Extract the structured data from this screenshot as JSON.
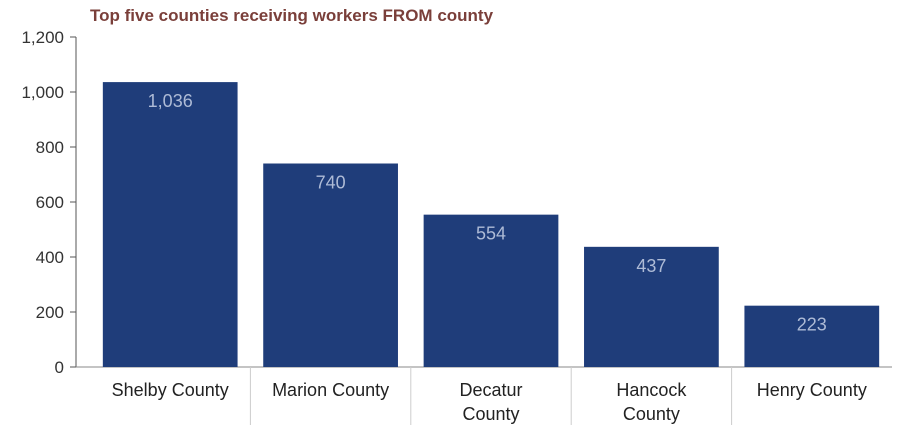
{
  "chart_data": {
    "type": "bar",
    "title": "Top five counties receiving workers FROM county",
    "categories": [
      "Shelby County",
      "Marion County",
      "Decatur County",
      "Hancock County",
      "Henry County"
    ],
    "category_lines": [
      [
        "Shelby County"
      ],
      [
        "Marion County"
      ],
      [
        "Decatur",
        "County"
      ],
      [
        "Hancock",
        "County"
      ],
      [
        "Henry County"
      ]
    ],
    "values": [
      1036,
      740,
      554,
      437,
      223
    ],
    "data_labels": [
      "1,036",
      "740",
      "554",
      "437",
      "223"
    ],
    "ylim": [
      0,
      1200
    ],
    "yticks": [
      0,
      200,
      400,
      600,
      800,
      1000,
      1200
    ],
    "ytick_labels": [
      "0",
      "200",
      "400",
      "600",
      "800",
      "1,000",
      "1,200"
    ],
    "xlabel": "",
    "ylabel": "",
    "grid": false,
    "legend": "none",
    "bar_color": "#1f3d7a",
    "data_label_color": "#aebbd6",
    "title_color": "#7a3f3a"
  }
}
